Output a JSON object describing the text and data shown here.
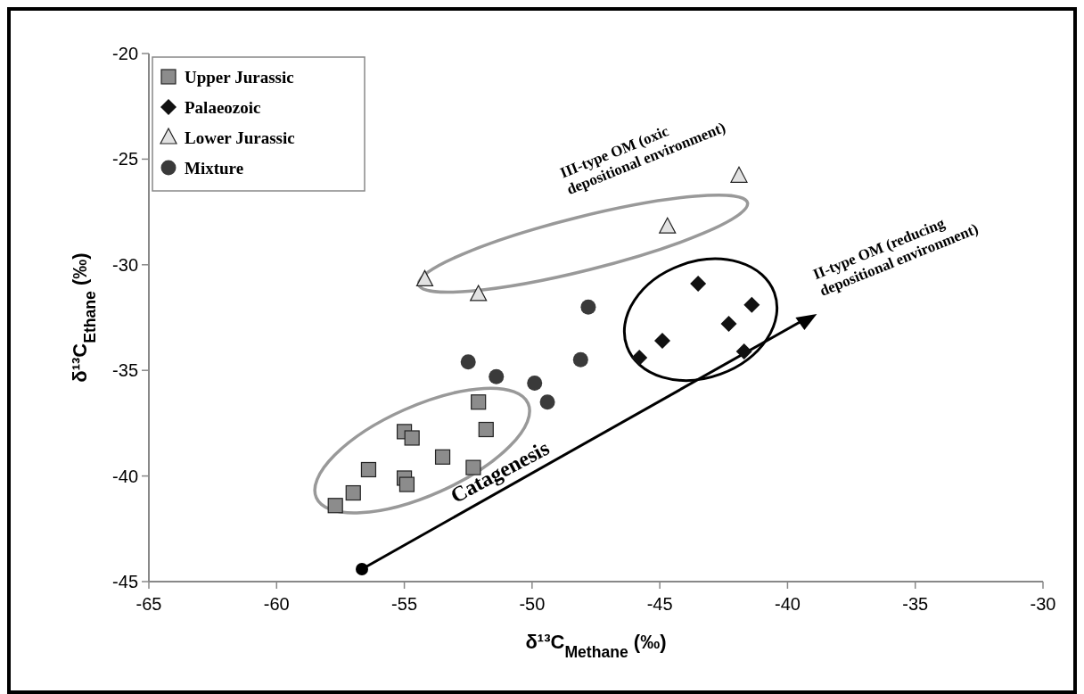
{
  "chart_data": {
    "type": "scatter",
    "xlabel": "δ¹³C$_{Methane}$  (‰)",
    "ylabel": "δ¹³C$_{Ethane}$  (‰)",
    "xlim": [
      -65,
      -30
    ],
    "xticks": [
      -65,
      -60,
      -55,
      -50,
      -45,
      -40,
      -35,
      -30
    ],
    "ylim": [
      -45,
      -20
    ],
    "yticks": [
      -45,
      -40,
      -35,
      -30,
      -25,
      -20
    ],
    "grid": false,
    "legend": "top left",
    "series": [
      {
        "name": "Upper Jurassic",
        "color": "#8c8c8c",
        "marker": "square",
        "x": [
          -52.1,
          -51.8,
          -55.0,
          -54.7,
          -53.5,
          -52.3,
          -56.4,
          -55.0,
          -54.9,
          -57.0,
          -57.7
        ],
        "values": [
          -36.5,
          -37.8,
          -37.9,
          -38.2,
          -39.1,
          -39.6,
          -39.7,
          -40.1,
          -40.4,
          -40.8,
          -41.4
        ]
      },
      {
        "name": "Palaeozoic",
        "color": "#111111",
        "marker": "diamond",
        "x": [
          -43.5,
          -41.4,
          -42.3,
          -44.9,
          -45.8,
          -41.7
        ],
        "values": [
          -30.9,
          -31.9,
          -32.8,
          -33.6,
          -34.4,
          -34.1
        ]
      },
      {
        "name": "Lower Jurassic",
        "color": "#e2e2e2",
        "marker": "triangle",
        "x": [
          -54.2,
          -52.1,
          -41.9,
          -44.7
        ],
        "values": [
          -30.7,
          -31.4,
          -25.8,
          -28.2
        ]
      },
      {
        "name": "Mixture",
        "color": "#3a3a3a",
        "marker": "circle",
        "x": [
          -47.8,
          -52.5,
          -51.4,
          -49.9,
          -49.4,
          -48.1
        ],
        "values": [
          -32.0,
          -34.6,
          -35.3,
          -35.6,
          -36.5,
          -34.5
        ]
      }
    ],
    "annotations": [
      "III-type OM (oxic depositional environment)",
      "II-type OM (reducing depositional environment)",
      "Catagenesis"
    ]
  }
}
